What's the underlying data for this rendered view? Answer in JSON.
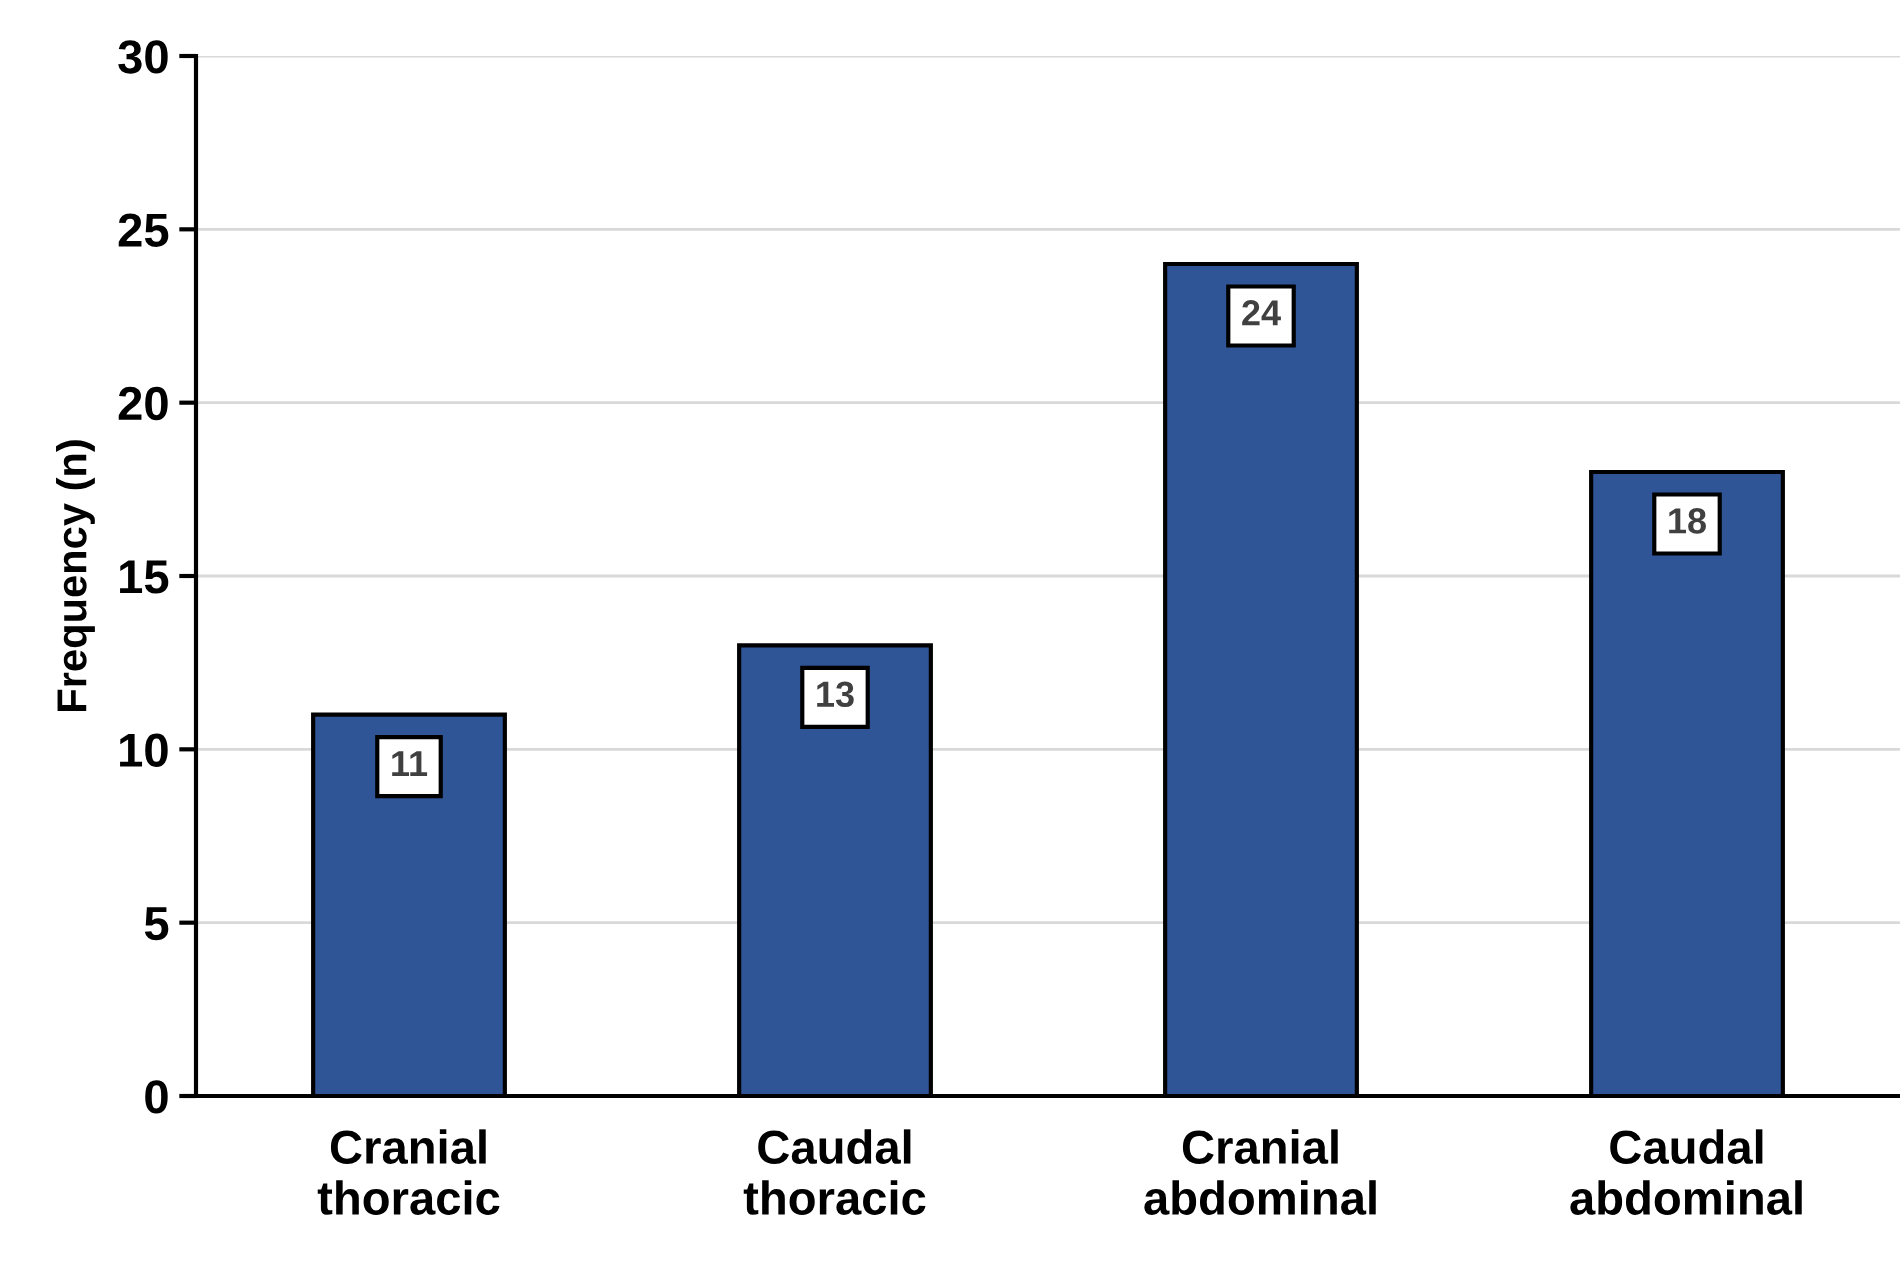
{
  "chart_data": {
    "type": "bar",
    "ylabel": "Frequency (n)",
    "categories": [
      "Cranial\nthoracic",
      "Caudal\nthoracic",
      "Cranial\nabdominal",
      "Caudal\nabdominal"
    ],
    "values": [
      11,
      13,
      24,
      18
    ],
    "color": "#2f5597",
    "ylim": [
      0,
      30
    ],
    "yticks": [
      0,
      5,
      10,
      15,
      20,
      25,
      30
    ],
    "grid": "y",
    "data_labels": true
  }
}
